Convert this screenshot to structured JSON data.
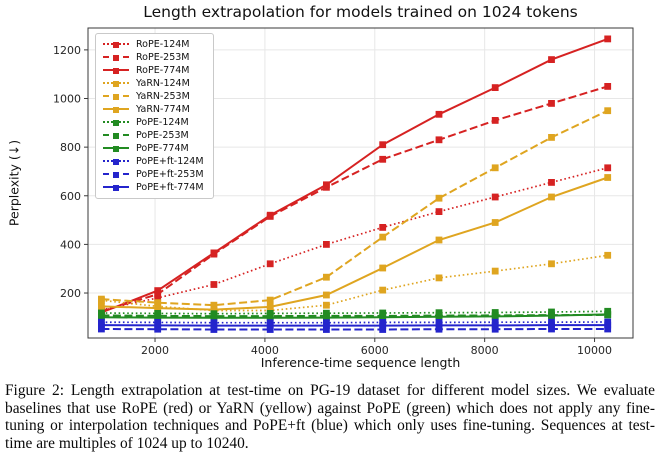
{
  "figure": {
    "caption": "Figure 2: Length extrapolation at test-time on PG-19 dataset for different model sizes. We evaluate baselines that use RoPE (red) or YaRN (yellow) against PoPE (green) which does not apply any fine-tuning or interpolation techniques and PoPE+ft (blue) which only uses fine-tuning. Sequences at test-time are multiples of 1024 up to 10240."
  },
  "chart_data": {
    "type": "line",
    "title": "Length extrapolation for models trained on 1024 tokens",
    "xlabel": "Inference-time sequence length",
    "ylabel": "Perplexity (↓)",
    "x": [
      1024,
      2048,
      3072,
      4096,
      5120,
      6144,
      7168,
      8192,
      9216,
      10240
    ],
    "xticks": [
      2000,
      4000,
      6000,
      8000,
      10000
    ],
    "yticks": [
      200,
      400,
      600,
      800,
      1000,
      1200
    ],
    "xlim": [
      780,
      10700
    ],
    "ylim": [
      15,
      1290
    ],
    "grid": true,
    "legend_position": "upper left",
    "marker": "square",
    "colors": {
      "RoPE": "#d62222",
      "YaRN": "#dfa520",
      "PoPE": "#228b22",
      "PoPE+ft": "#2424cc"
    },
    "series": [
      {
        "name": "RoPE-124M",
        "color": "#d62222",
        "style": "dotted",
        "values": [
          130,
          180,
          235,
          320,
          400,
          470,
          535,
          595,
          655,
          715
        ]
      },
      {
        "name": "RoPE-253M",
        "color": "#d62222",
        "style": "dashed",
        "values": [
          125,
          195,
          360,
          515,
          635,
          750,
          830,
          910,
          980,
          1050
        ]
      },
      {
        "name": "RoPE-774M",
        "color": "#d62222",
        "style": "solid",
        "values": [
          120,
          210,
          365,
          520,
          645,
          810,
          935,
          1045,
          1160,
          1245
        ]
      },
      {
        "name": "YaRN-124M",
        "color": "#dfa520",
        "style": "dotted",
        "values": [
          170,
          145,
          128,
          128,
          150,
          212,
          262,
          290,
          320,
          355
        ]
      },
      {
        "name": "YaRN-253M",
        "color": "#dfa520",
        "style": "dashed",
        "values": [
          175,
          160,
          150,
          171,
          265,
          430,
          590,
          715,
          840,
          950
        ]
      },
      {
        "name": "YaRN-774M",
        "color": "#dfa520",
        "style": "solid",
        "values": [
          145,
          138,
          132,
          143,
          192,
          303,
          418,
          490,
          595,
          675
        ]
      },
      {
        "name": "PoPE-124M",
        "color": "#228b22",
        "style": "dotted",
        "values": [
          118,
          116,
          115,
          116,
          117,
          118,
          119,
          120,
          122,
          125
        ]
      },
      {
        "name": "PoPE-253M",
        "color": "#228b22",
        "style": "dashed",
        "values": [
          108,
          106,
          105,
          105,
          106,
          106,
          107,
          108,
          109,
          110
        ]
      },
      {
        "name": "PoPE-774M",
        "color": "#228b22",
        "style": "solid",
        "values": [
          100,
          99,
          98,
          98,
          99,
          100,
          102,
          104,
          107,
          112
        ]
      },
      {
        "name": "PoPE+ft-124M",
        "color": "#2424cc",
        "style": "dotted",
        "values": [
          80,
          79,
          78,
          78,
          78,
          79,
          79,
          80,
          80,
          81
        ]
      },
      {
        "name": "PoPE+ft-253M",
        "color": "#2424cc",
        "style": "dashed",
        "values": [
          52,
          51,
          50,
          50,
          50,
          50,
          51,
          51,
          52,
          52
        ]
      },
      {
        "name": "PoPE+ft-774M",
        "color": "#2424cc",
        "style": "solid",
        "values": [
          68,
          67,
          66,
          66,
          66,
          66,
          67,
          67,
          68,
          68
        ]
      }
    ]
  }
}
